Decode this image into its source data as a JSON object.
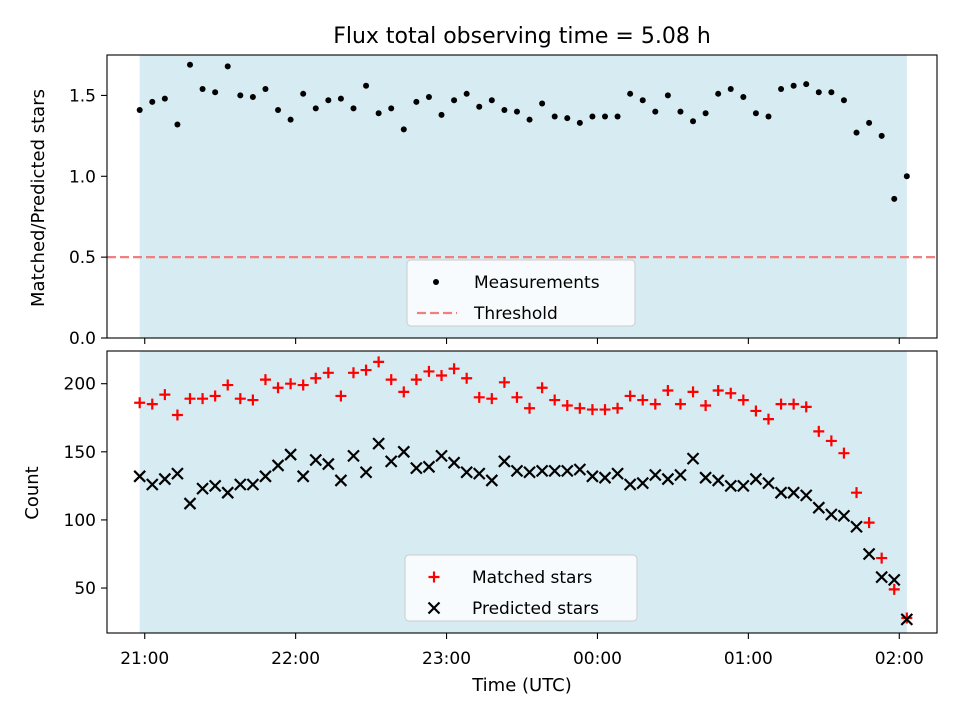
{
  "chart_data": [
    {
      "type": "scatter",
      "title": "Flux total observing time = 5.08 h",
      "xlabel": "",
      "ylabel": "Matched/Predicted stars",
      "ylim": [
        0,
        1.75
      ],
      "yticks": [
        0.0,
        0.5,
        1.0,
        1.5
      ],
      "ytick_labels": [
        "0.0",
        "0.5",
        "1.0",
        "1.5"
      ],
      "xlim": [
        "20:45",
        "02:15"
      ],
      "xticks": [
        "21:00",
        "22:00",
        "23:00",
        "00:00",
        "01:00",
        "02:00"
      ],
      "shaded_interval": [
        "20:58",
        "02:03"
      ],
      "threshold": 0.5,
      "legend_position": "lower center",
      "legend": {
        "measurements": "Measurements",
        "threshold": "Threshold"
      },
      "series": [
        {
          "name": "Measurements",
          "marker": "dot",
          "color": "#000000",
          "x": [
            "20:58",
            "21:03",
            "21:08",
            "21:13",
            "21:18",
            "21:23",
            "21:28",
            "21:33",
            "21:38",
            "21:43",
            "21:48",
            "21:53",
            "21:58",
            "22:03",
            "22:08",
            "22:13",
            "22:18",
            "22:23",
            "22:28",
            "22:33",
            "22:38",
            "22:43",
            "22:48",
            "22:53",
            "22:58",
            "23:03",
            "23:08",
            "23:13",
            "23:18",
            "23:23",
            "23:28",
            "23:33",
            "23:38",
            "23:43",
            "23:48",
            "23:53",
            "23:58",
            "00:03",
            "00:08",
            "00:13",
            "00:18",
            "00:23",
            "00:28",
            "00:33",
            "00:38",
            "00:43",
            "00:48",
            "00:53",
            "00:58",
            "01:03",
            "01:08",
            "01:13",
            "01:18",
            "01:23",
            "01:28",
            "01:33",
            "01:38",
            "01:43",
            "01:48",
            "01:53",
            "01:58",
            "02:03"
          ],
          "values": [
            1.41,
            1.46,
            1.48,
            1.32,
            1.69,
            1.54,
            1.52,
            1.68,
            1.5,
            1.49,
            1.54,
            1.41,
            1.35,
            1.51,
            1.42,
            1.47,
            1.48,
            1.42,
            1.56,
            1.39,
            1.42,
            1.29,
            1.46,
            1.49,
            1.38,
            1.47,
            1.51,
            1.43,
            1.47,
            1.41,
            1.4,
            1.35,
            1.45,
            1.37,
            1.36,
            1.33,
            1.37,
            1.37,
            1.37,
            1.51,
            1.47,
            1.4,
            1.5,
            1.4,
            1.34,
            1.39,
            1.51,
            1.54,
            1.49,
            1.39,
            1.37,
            1.54,
            1.56,
            1.57,
            1.52,
            1.52,
            1.47,
            1.27,
            1.33,
            1.25,
            0.86,
            1.0
          ]
        }
      ]
    },
    {
      "type": "scatter",
      "xlabel": "Time (UTC)",
      "ylabel": "Count",
      "ylim": [
        17,
        224
      ],
      "yticks": [
        50,
        100,
        150,
        200
      ],
      "ytick_labels": [
        "50",
        "100",
        "150",
        "200"
      ],
      "xlim": [
        "20:45",
        "02:15"
      ],
      "xticks": [
        "21:00",
        "22:00",
        "23:00",
        "00:00",
        "01:00",
        "02:00"
      ],
      "xtick_labels": [
        "21:00",
        "22:00",
        "23:00",
        "00:00",
        "01:00",
        "02:00"
      ],
      "shaded_interval": [
        "20:58",
        "02:03"
      ],
      "legend_position": "lower center",
      "series": [
        {
          "name": "Matched stars",
          "marker": "plus",
          "color": "#ff0000",
          "x": [
            "20:58",
            "21:03",
            "21:08",
            "21:13",
            "21:18",
            "21:23",
            "21:28",
            "21:33",
            "21:38",
            "21:43",
            "21:48",
            "21:53",
            "21:58",
            "22:03",
            "22:08",
            "22:13",
            "22:18",
            "22:23",
            "22:28",
            "22:33",
            "22:38",
            "22:43",
            "22:48",
            "22:53",
            "22:58",
            "23:03",
            "23:08",
            "23:13",
            "23:18",
            "23:23",
            "23:28",
            "23:33",
            "23:38",
            "23:43",
            "23:48",
            "23:53",
            "23:58",
            "00:03",
            "00:08",
            "00:13",
            "00:18",
            "00:23",
            "00:28",
            "00:33",
            "00:38",
            "00:43",
            "00:48",
            "00:53",
            "00:58",
            "01:03",
            "01:08",
            "01:13",
            "01:18",
            "01:23",
            "01:28",
            "01:33",
            "01:38",
            "01:43",
            "01:48",
            "01:53",
            "01:58",
            "02:03"
          ],
          "values": [
            186,
            185,
            192,
            177,
            189,
            189,
            191,
            199,
            189,
            188,
            203,
            197,
            200,
            199,
            204,
            208,
            191,
            208,
            210,
            216,
            203,
            194,
            203,
            209,
            206,
            211,
            204,
            190,
            189,
            201,
            190,
            182,
            197,
            188,
            184,
            182,
            181,
            181,
            182,
            191,
            188,
            185,
            195,
            185,
            194,
            184,
            195,
            193,
            188,
            180,
            174,
            185,
            185,
            183,
            165,
            158,
            149,
            120,
            98,
            72,
            49,
            28
          ]
        },
        {
          "name": "Predicted stars",
          "marker": "x",
          "color": "#000000",
          "x": [
            "20:58",
            "21:03",
            "21:08",
            "21:13",
            "21:18",
            "21:23",
            "21:28",
            "21:33",
            "21:38",
            "21:43",
            "21:48",
            "21:53",
            "21:58",
            "22:03",
            "22:08",
            "22:13",
            "22:18",
            "22:23",
            "22:28",
            "22:33",
            "22:38",
            "22:43",
            "22:48",
            "22:53",
            "22:58",
            "23:03",
            "23:08",
            "23:13",
            "23:18",
            "23:23",
            "23:28",
            "23:33",
            "23:38",
            "23:43",
            "23:48",
            "23:53",
            "23:58",
            "00:03",
            "00:08",
            "00:13",
            "00:18",
            "00:23",
            "00:28",
            "00:33",
            "00:38",
            "00:43",
            "00:48",
            "00:53",
            "00:58",
            "01:03",
            "01:08",
            "01:13",
            "01:18",
            "01:23",
            "01:28",
            "01:33",
            "01:38",
            "01:43",
            "01:48",
            "01:53",
            "01:58",
            "02:03"
          ],
          "values": [
            132,
            126,
            130,
            134,
            112,
            123,
            125,
            120,
            126,
            126,
            132,
            140,
            148,
            132,
            144,
            141,
            129,
            147,
            135,
            156,
            143,
            150,
            138,
            139,
            147,
            142,
            135,
            134,
            129,
            143,
            136,
            135,
            136,
            136,
            136,
            137,
            132,
            131,
            134,
            126,
            127,
            133,
            130,
            133,
            145,
            131,
            129,
            125,
            125,
            130,
            127,
            120,
            120,
            118,
            109,
            104,
            103,
            95,
            75,
            58,
            56,
            27
          ]
        }
      ]
    }
  ]
}
